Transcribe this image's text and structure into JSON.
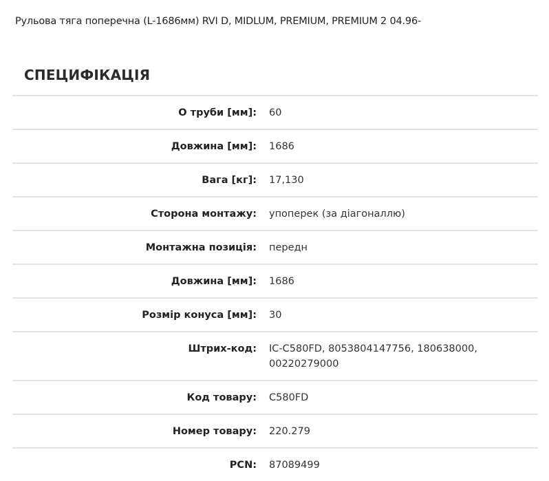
{
  "product_title": "Рульова тяга поперечна (L-1686мм) RVI D, MIDLUM, PREMIUM, PREMIUM 2 04.96-",
  "spec": {
    "heading": "СПЕЦИФІКАЦІЯ",
    "rows": [
      {
        "label": "О труби [мм]:",
        "value": "60"
      },
      {
        "label": "Довжина [мм]:",
        "value": "1686"
      },
      {
        "label": "Вага [кг]:",
        "value": "17,130"
      },
      {
        "label": "Сторона монтажу:",
        "value": "упоперек (за діагоналлю)"
      },
      {
        "label": "Монтажна позиція:",
        "value": "передн"
      },
      {
        "label": "Довжина [мм]:",
        "value": "1686"
      },
      {
        "label": "Розмір конуса [мм]:",
        "value": "30"
      },
      {
        "label": "Штрих-код:",
        "value": "IC-C580FD, 8053804147756, 180638000, 00220279000"
      },
      {
        "label": "Код товару:",
        "value": "C580FD"
      },
      {
        "label": "Номер товару:",
        "value": "220.279"
      },
      {
        "label": "PCN:",
        "value": "87089499"
      }
    ]
  }
}
